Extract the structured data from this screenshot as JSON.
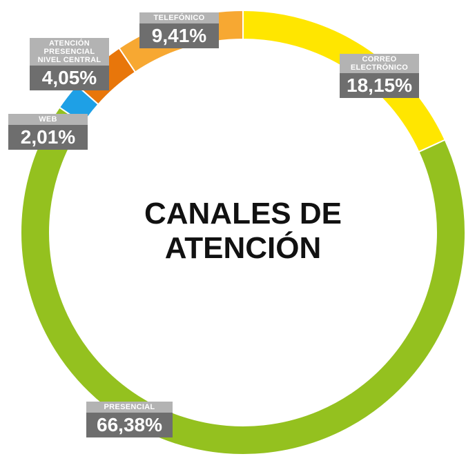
{
  "chart_data": {
    "type": "donut",
    "title": "CANALES DE ATENCIÓN",
    "categories": [
      "CORREO ELECTRÓNICO",
      "PRESENCIAL",
      "WEB",
      "ATENCIÓN PRESENCIAL NIVEL CENTRAL",
      "TELEFÓNICO"
    ],
    "values": [
      18.15,
      66.38,
      2.01,
      4.05,
      9.41
    ],
    "value_labels": [
      "18,15%",
      "66,38%",
      "2,01%",
      "4,05%",
      "9,41%"
    ],
    "colors": [
      "#ffe600",
      "#94c11f",
      "#1ea0e6",
      "#e8760a",
      "#f7a832"
    ]
  }
}
